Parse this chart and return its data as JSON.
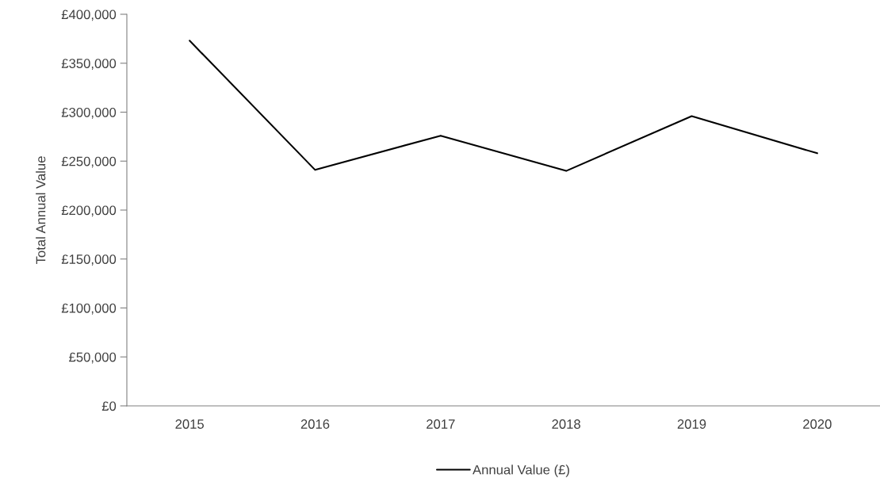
{
  "chart_data": {
    "type": "line",
    "ylabel": "Total Annual Value",
    "categories": [
      "2015",
      "2016",
      "2017",
      "2018",
      "2019",
      "2020"
    ],
    "series": [
      {
        "name": "Annual Value (£)",
        "color": "#000000",
        "values": [
          373000,
          241000,
          276000,
          240000,
          296000,
          258000
        ]
      }
    ],
    "ylim": [
      0,
      400000
    ],
    "yticks": [
      {
        "value": 0,
        "label": "£0"
      },
      {
        "value": 50000,
        "label": "£50,000"
      },
      {
        "value": 100000,
        "label": "£100,000"
      },
      {
        "value": 150000,
        "label": "£150,000"
      },
      {
        "value": 200000,
        "label": "£200,000"
      },
      {
        "value": 250000,
        "label": "£250,000"
      },
      {
        "value": 300000,
        "label": "£300,000"
      },
      {
        "value": 350000,
        "label": "£350,000"
      },
      {
        "value": 400000,
        "label": "£400,000"
      }
    ],
    "legend": "bottom",
    "grid": false,
    "marker": "none",
    "line_style": "solid"
  }
}
